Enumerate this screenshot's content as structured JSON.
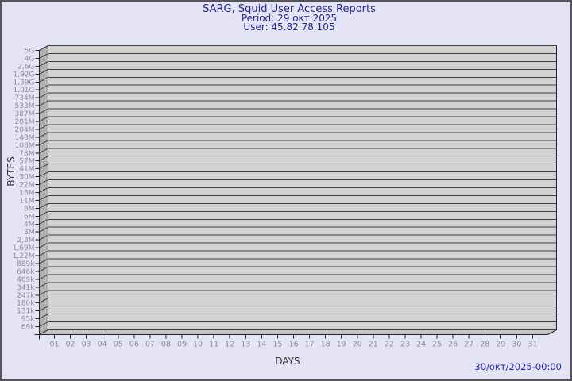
{
  "header": {
    "title": "SARG, Squid User Access Reports",
    "period": "Period: 29 окт 2025",
    "user": "User: 45.82.78.105"
  },
  "axes": {
    "y_title": "BYTES",
    "x_title": "DAYS"
  },
  "footer": {
    "timestamp": "30/окт/2025-00:00"
  },
  "colors": {
    "background": "#e4e4f4",
    "border": "#56565a",
    "title_text": "#26269e",
    "footer_text": "#2525cc",
    "plot_fill": "#d3d3d3",
    "left_wall_fill": "#b3b3b3",
    "bottom_wall_fill": "#c6c6c6",
    "grid_line": "#414141",
    "box_edge": "#222222",
    "tick_label": "#8f8f96",
    "axis_title_text": "#38383c"
  },
  "chart_data": {
    "type": "bar",
    "title": "SARG, Squid User Access Reports",
    "subtitle": [
      "Period: 29 окт 2025",
      "User: 45.82.78.105"
    ],
    "xlabel": "DAYS",
    "ylabel": "BYTES",
    "categories": [
      "01",
      "02",
      "03",
      "04",
      "05",
      "06",
      "07",
      "08",
      "09",
      "10",
      "11",
      "12",
      "13",
      "14",
      "15",
      "16",
      "17",
      "18",
      "19",
      "20",
      "21",
      "22",
      "23",
      "24",
      "25",
      "26",
      "27",
      "28",
      "29",
      "30",
      "31"
    ],
    "values": [
      0,
      0,
      0,
      0,
      0,
      0,
      0,
      0,
      0,
      0,
      0,
      0,
      0,
      0,
      0,
      0,
      0,
      0,
      0,
      0,
      0,
      0,
      0,
      0,
      0,
      0,
      0,
      0,
      0,
      0,
      0
    ],
    "y_scale": "log",
    "y_range_labels": [
      "69k",
      "5G"
    ],
    "y_tick_labels_top_to_bottom": [
      "5G",
      "4G",
      "2,6G",
      "1,92G",
      "1,39G",
      "1,01G",
      "734M",
      "533M",
      "387M",
      "281M",
      "204M",
      "148M",
      "108M",
      "78M",
      "57M",
      "41M",
      "30M",
      "22M",
      "16M",
      "11M",
      "8M",
      "6M",
      "4M",
      "3M",
      "2,3M",
      "1,69M",
      "1,22M",
      "889k",
      "646k",
      "469k",
      "341k",
      "247k",
      "180k",
      "131k",
      "95k",
      "69k"
    ],
    "grid": "horizontal",
    "legend_position": "none",
    "footer_timestamp": "30/окт/2025-00:00"
  }
}
